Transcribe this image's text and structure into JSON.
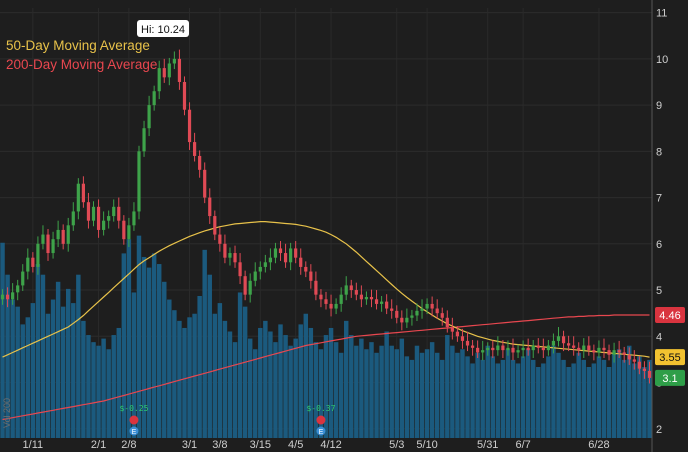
{
  "chart_data": {
    "type": "candlestick",
    "y_ticks": [
      2,
      3,
      4,
      5,
      6,
      7,
      8,
      9,
      10,
      11
    ],
    "ylim": [
      1.8,
      11.1
    ],
    "x_ticks": [
      "1/11",
      "2/1",
      "2/8",
      "3/1",
      "3/8",
      "3/15",
      "4/5",
      "4/12",
      "5/3",
      "5/10",
      "5/31",
      "6/7",
      "6/28"
    ],
    "legend": [
      {
        "label": "50-Day Moving Average",
        "color": "#e8c24a"
      },
      {
        "label": "200-Day Moving Average",
        "color": "#e8474f"
      }
    ],
    "hi_label": "Hi: 10.24",
    "hi_value": 10.24,
    "colors": {
      "up": "#3ea34a",
      "down": "#e04a55",
      "volume": "#1b5a7e",
      "ma50": "#e8c24a",
      "ma200": "#e8474f",
      "last": "#2e9e48"
    },
    "close": [
      4.9,
      4.8,
      4.95,
      5.1,
      5.4,
      5.7,
      5.5,
      6.0,
      6.2,
      5.8,
      6.1,
      6.3,
      6.0,
      6.4,
      6.7,
      7.3,
      6.9,
      6.5,
      6.8,
      6.3,
      6.5,
      6.6,
      6.8,
      6.5,
      6.1,
      6.4,
      6.7,
      8.0,
      8.5,
      9.0,
      9.3,
      9.8,
      9.6,
      9.9,
      10.0,
      9.5,
      8.9,
      8.2,
      7.9,
      7.6,
      7.0,
      6.6,
      6.2,
      6.0,
      5.7,
      5.8,
      5.6,
      5.3,
      4.9,
      5.2,
      5.4,
      5.5,
      5.6,
      5.7,
      5.9,
      5.8,
      5.6,
      5.9,
      5.7,
      5.5,
      5.4,
      5.2,
      4.9,
      4.8,
      4.7,
      4.6,
      4.7,
      4.9,
      5.1,
      5.0,
      4.9,
      4.8,
      4.85,
      4.8,
      4.7,
      4.75,
      4.6,
      4.55,
      4.4,
      4.3,
      4.4,
      4.45,
      4.55,
      4.6,
      4.7,
      4.6,
      4.5,
      4.4,
      4.2,
      4.1,
      4.0,
      3.9,
      3.8,
      3.75,
      3.65,
      3.7,
      3.75,
      3.7,
      3.8,
      3.7,
      3.75,
      3.65,
      3.7,
      3.75,
      3.7,
      3.8,
      3.75,
      3.7,
      3.8,
      3.9,
      4.0,
      3.85,
      3.8,
      3.75,
      3.7,
      3.8,
      3.7,
      3.65,
      3.75,
      3.7,
      3.6,
      3.7,
      3.65,
      3.6,
      3.5,
      3.45,
      3.3,
      3.25,
      3.1
    ],
    "volume_max": 6.0,
    "volume": [
      5.5,
      4.6,
      3.9,
      3.7,
      3.2,
      3.4,
      3.8,
      4.9,
      4.6,
      3.5,
      3.9,
      4.4,
      3.7,
      4.2,
      3.8,
      4.6,
      3.3,
      2.9,
      2.7,
      2.6,
      2.8,
      2.5,
      2.9,
      3.1,
      5.2,
      5.6,
      4.1,
      5.7,
      5.1,
      4.8,
      5.2,
      4.9,
      4.4,
      3.9,
      3.6,
      3.3,
      3.1,
      3.4,
      3.5,
      4.0,
      5.3,
      4.6,
      3.5,
      3.8,
      3.3,
      3.0,
      2.7,
      4.1,
      3.7,
      2.8,
      2.5,
      3.1,
      3.3,
      3.0,
      2.7,
      3.2,
      2.9,
      2.6,
      2.8,
      3.2,
      3.5,
      3.1,
      2.7,
      2.5,
      2.9,
      3.1,
      2.7,
      2.4,
      3.3,
      2.9,
      2.6,
      2.8,
      2.5,
      2.7,
      2.4,
      2.6,
      3.0,
      2.6,
      2.5,
      2.8,
      2.3,
      2.2,
      2.6,
      2.4,
      2.5,
      2.7,
      2.4,
      2.2,
      2.9,
      2.6,
      2.4,
      2.5,
      2.3,
      2.1,
      2.4,
      2.2,
      2.6,
      2.3,
      2.1,
      2.2,
      2.5,
      2.2,
      2.1,
      2.3,
      2.5,
      2.2,
      2.0,
      2.1,
      2.3,
      2.6,
      2.4,
      2.2,
      2.0,
      2.1,
      2.4,
      2.2,
      2.0,
      2.1,
      2.3,
      2.2,
      2.0,
      2.4,
      2.5,
      2.2,
      2.6,
      2.1,
      2.3,
      2.0,
      2.2
    ],
    "ma50": [
      3.55,
      3.6,
      3.65,
      3.7,
      3.75,
      3.8,
      3.85,
      3.9,
      3.95,
      4.0,
      4.05,
      4.1,
      4.15,
      4.2,
      4.28,
      4.36,
      4.45,
      4.55,
      4.65,
      4.75,
      4.85,
      4.95,
      5.05,
      5.15,
      5.25,
      5.35,
      5.45,
      5.55,
      5.63,
      5.7,
      5.77,
      5.84,
      5.9,
      5.96,
      6.01,
      6.06,
      6.11,
      6.16,
      6.2,
      6.24,
      6.28,
      6.31,
      6.34,
      6.37,
      6.39,
      6.41,
      6.43,
      6.44,
      6.45,
      6.46,
      6.47,
      6.48,
      6.48,
      6.47,
      6.46,
      6.45,
      6.44,
      6.43,
      6.42,
      6.4,
      6.38,
      6.35,
      6.32,
      6.29,
      6.25,
      6.2,
      6.14,
      6.07,
      6.0,
      5.91,
      5.82,
      5.72,
      5.62,
      5.52,
      5.42,
      5.32,
      5.22,
      5.12,
      5.02,
      4.93,
      4.84,
      4.76,
      4.68,
      4.6,
      4.53,
      4.46,
      4.39,
      4.33,
      4.27,
      4.22,
      4.17,
      4.12,
      4.08,
      4.04,
      4.0,
      3.97,
      3.94,
      3.91,
      3.89,
      3.87,
      3.85,
      3.83,
      3.82,
      3.81,
      3.8,
      3.79,
      3.78,
      3.77,
      3.76,
      3.75,
      3.74,
      3.73,
      3.72,
      3.71,
      3.7,
      3.69,
      3.68,
      3.67,
      3.66,
      3.65,
      3.64,
      3.63,
      3.62,
      3.61,
      3.6,
      3.59,
      3.58,
      3.57,
      3.55
    ],
    "ma200": [
      2.2,
      2.22,
      2.24,
      2.26,
      2.28,
      2.3,
      2.32,
      2.34,
      2.36,
      2.38,
      2.4,
      2.42,
      2.44,
      2.46,
      2.48,
      2.5,
      2.52,
      2.54,
      2.56,
      2.58,
      2.6,
      2.63,
      2.66,
      2.69,
      2.72,
      2.75,
      2.78,
      2.81,
      2.84,
      2.87,
      2.9,
      2.93,
      2.96,
      2.99,
      3.02,
      3.05,
      3.08,
      3.11,
      3.14,
      3.17,
      3.2,
      3.23,
      3.26,
      3.29,
      3.32,
      3.35,
      3.38,
      3.41,
      3.44,
      3.47,
      3.5,
      3.53,
      3.56,
      3.59,
      3.62,
      3.65,
      3.68,
      3.71,
      3.74,
      3.77,
      3.8,
      3.82,
      3.84,
      3.86,
      3.88,
      3.9,
      3.92,
      3.94,
      3.96,
      3.98,
      4.0,
      4.01,
      4.02,
      4.03,
      4.04,
      4.05,
      4.06,
      4.07,
      4.08,
      4.09,
      4.1,
      4.11,
      4.12,
      4.13,
      4.14,
      4.15,
      4.16,
      4.17,
      4.18,
      4.19,
      4.2,
      4.21,
      4.22,
      4.23,
      4.24,
      4.25,
      4.26,
      4.27,
      4.28,
      4.29,
      4.3,
      4.31,
      4.32,
      4.33,
      4.34,
      4.35,
      4.36,
      4.37,
      4.38,
      4.39,
      4.4,
      4.41,
      4.42,
      4.42,
      4.43,
      4.43,
      4.44,
      4.44,
      4.45,
      4.45,
      4.45,
      4.46,
      4.46,
      4.46,
      4.46,
      4.46,
      4.46,
      4.46,
      4.46
    ],
    "badges": [
      {
        "label": "4.46",
        "value": 4.46,
        "color": "#d9343f",
        "text_color": "#ffffff"
      },
      {
        "label": "3.55",
        "value": 3.55,
        "color": "#f2c230",
        "text_color": "#111111"
      },
      {
        "label": "3.1",
        "value": 3.1,
        "color": "#2e9e48",
        "text_color": "#ffffff"
      }
    ],
    "events": [
      {
        "label": "$-0.25",
        "icon": "E"
      },
      {
        "label": "$-0.37",
        "icon": "E"
      }
    ],
    "watermark": "Vol 200"
  }
}
